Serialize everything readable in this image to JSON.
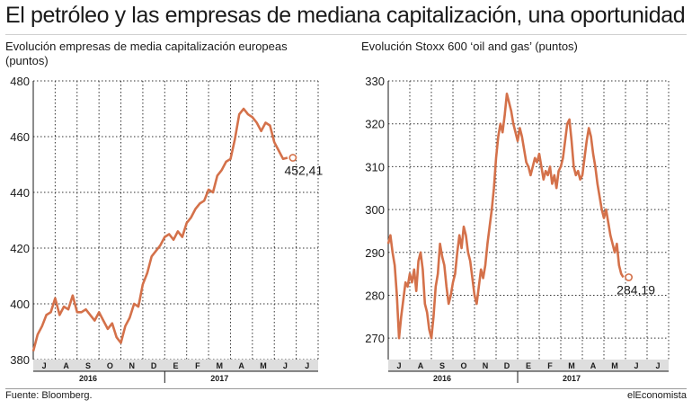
{
  "header": {
    "title": "El petróleo y las empresas de mediana capitalización, una oportunidad"
  },
  "footer": {
    "source": "Fuente: Bloomberg.",
    "brand": "elEconomista"
  },
  "colors": {
    "line": "#d4714a",
    "grid": "#333333",
    "axis_band": "#dedede"
  },
  "chart_data": [
    {
      "type": "line",
      "title": "Evolución empresas de media capitalización europeas (puntos)",
      "title_lines": [
        "Evolución empresas de media capitalización europeas",
        "(puntos)"
      ],
      "ylim": [
        380,
        480
      ],
      "yticks": [
        380,
        400,
        420,
        440,
        460,
        480
      ],
      "ytick_labels": [
        "380",
        "400",
        "420",
        "440",
        "460",
        "480"
      ],
      "months": [
        "J",
        "A",
        "S",
        "O",
        "N",
        "D",
        "E",
        "F",
        "M",
        "A",
        "M",
        "J",
        "J"
      ],
      "years": [
        {
          "label": "2016",
          "at": 2.5
        },
        {
          "label": "2017",
          "at": 8.5
        }
      ],
      "grid": true,
      "last_value_label": "452,41",
      "series": [
        {
          "points": [
            [
              0.0,
              383
            ],
            [
              0.2,
              389
            ],
            [
              0.4,
              392
            ],
            [
              0.6,
              396
            ],
            [
              0.8,
              397
            ],
            [
              1.0,
              402
            ],
            [
              1.2,
              396
            ],
            [
              1.4,
              399
            ],
            [
              1.6,
              398
            ],
            [
              1.8,
              403
            ],
            [
              2.0,
              397
            ],
            [
              2.2,
              397
            ],
            [
              2.4,
              398
            ],
            [
              2.6,
              396
            ],
            [
              2.8,
              394
            ],
            [
              3.0,
              397
            ],
            [
              3.2,
              394
            ],
            [
              3.4,
              391
            ],
            [
              3.6,
              393
            ],
            [
              3.8,
              388
            ],
            [
              4.0,
              386
            ],
            [
              4.2,
              392
            ],
            [
              4.4,
              395
            ],
            [
              4.6,
              400
            ],
            [
              4.8,
              399
            ],
            [
              5.0,
              407
            ],
            [
              5.2,
              411
            ],
            [
              5.4,
              417
            ],
            [
              5.6,
              419
            ],
            [
              5.8,
              421
            ],
            [
              6.0,
              424
            ],
            [
              6.2,
              425
            ],
            [
              6.4,
              423
            ],
            [
              6.6,
              426
            ],
            [
              6.8,
              424
            ],
            [
              7.0,
              429
            ],
            [
              7.2,
              431
            ],
            [
              7.4,
              434
            ],
            [
              7.6,
              436
            ],
            [
              7.8,
              437
            ],
            [
              8.0,
              441
            ],
            [
              8.2,
              440
            ],
            [
              8.4,
              446
            ],
            [
              8.6,
              448
            ],
            [
              8.8,
              451
            ],
            [
              9.0,
              452
            ],
            [
              9.2,
              459
            ],
            [
              9.4,
              468
            ],
            [
              9.6,
              470
            ],
            [
              9.8,
              468
            ],
            [
              10.0,
              467
            ],
            [
              10.2,
              465
            ],
            [
              10.4,
              462
            ],
            [
              10.6,
              465
            ],
            [
              10.8,
              464
            ],
            [
              11.0,
              458
            ],
            [
              11.2,
              455
            ],
            [
              11.4,
              452
            ],
            [
              11.6,
              452.41
            ]
          ]
        }
      ]
    },
    {
      "type": "line",
      "title": "Evolución Stoxx 600 ‘oil and gas’ (puntos)",
      "title_lines": [
        "Evolución Stoxx 600 ‘oil and gas’ (puntos)"
      ],
      "ylim": [
        265,
        330
      ],
      "yticks": [
        270,
        280,
        290,
        300,
        310,
        320,
        330
      ],
      "ytick_labels": [
        "270",
        "280",
        "290",
        "300",
        "310",
        "320",
        "330"
      ],
      "months": [
        "J",
        "A",
        "S",
        "O",
        "N",
        "D",
        "E",
        "F",
        "M",
        "A",
        "M",
        "J",
        "J"
      ],
      "years": [
        {
          "label": "2016",
          "at": 2.5
        },
        {
          "label": "2017",
          "at": 8.5
        }
      ],
      "grid": true,
      "last_value_label": "284,19",
      "series": [
        {
          "points": [
            [
              0.0,
              292
            ],
            [
              0.1,
              294
            ],
            [
              0.2,
              290
            ],
            [
              0.3,
              287
            ],
            [
              0.4,
              280
            ],
            [
              0.5,
              270
            ],
            [
              0.6,
              275
            ],
            [
              0.7,
              279
            ],
            [
              0.8,
              283
            ],
            [
              0.9,
              282
            ],
            [
              1.0,
              285
            ],
            [
              1.1,
              283
            ],
            [
              1.2,
              286
            ],
            [
              1.3,
              281
            ],
            [
              1.4,
              288
            ],
            [
              1.5,
              290
            ],
            [
              1.6,
              286
            ],
            [
              1.7,
              278
            ],
            [
              1.8,
              276
            ],
            [
              1.9,
              272
            ],
            [
              2.0,
              270
            ],
            [
              2.1,
              275
            ],
            [
              2.2,
              282
            ],
            [
              2.3,
              285
            ],
            [
              2.4,
              292
            ],
            [
              2.5,
              289
            ],
            [
              2.6,
              287
            ],
            [
              2.7,
              282
            ],
            [
              2.8,
              278
            ],
            [
              2.9,
              280
            ],
            [
              3.0,
              283
            ],
            [
              3.1,
              285
            ],
            [
              3.2,
              290
            ],
            [
              3.3,
              294
            ],
            [
              3.4,
              291
            ],
            [
              3.5,
              296
            ],
            [
              3.6,
              294
            ],
            [
              3.7,
              290
            ],
            [
              3.8,
              288
            ],
            [
              3.9,
              284
            ],
            [
              4.0,
              280
            ],
            [
              4.1,
              278
            ],
            [
              4.2,
              282
            ],
            [
              4.3,
              286
            ],
            [
              4.4,
              284
            ],
            [
              4.5,
              287
            ],
            [
              4.6,
              292
            ],
            [
              4.7,
              296
            ],
            [
              4.8,
              300
            ],
            [
              4.9,
              305
            ],
            [
              5.0,
              312
            ],
            [
              5.1,
              317
            ],
            [
              5.2,
              320
            ],
            [
              5.3,
              318
            ],
            [
              5.4,
              322
            ],
            [
              5.5,
              327
            ],
            [
              5.6,
              325
            ],
            [
              5.7,
              323
            ],
            [
              5.8,
              320
            ],
            [
              5.9,
              318
            ],
            [
              6.0,
              316
            ],
            [
              6.1,
              319
            ],
            [
              6.2,
              317
            ],
            [
              6.3,
              314
            ],
            [
              6.4,
              311
            ],
            [
              6.5,
              310
            ],
            [
              6.6,
              308
            ],
            [
              6.7,
              310
            ],
            [
              6.8,
              312
            ],
            [
              6.9,
              311
            ],
            [
              7.0,
              313
            ],
            [
              7.1,
              310
            ],
            [
              7.2,
              307
            ],
            [
              7.3,
              309
            ],
            [
              7.4,
              308
            ],
            [
              7.5,
              310
            ],
            [
              7.6,
              306
            ],
            [
              7.7,
              308
            ],
            [
              7.8,
              305
            ],
            [
              7.9,
              309
            ],
            [
              8.0,
              310
            ],
            [
              8.1,
              312
            ],
            [
              8.2,
              316
            ],
            [
              8.3,
              320
            ],
            [
              8.4,
              321
            ],
            [
              8.5,
              316
            ],
            [
              8.6,
              310
            ],
            [
              8.7,
              308
            ],
            [
              8.8,
              309
            ],
            [
              8.9,
              307
            ],
            [
              9.0,
              308
            ],
            [
              9.1,
              312
            ],
            [
              9.2,
              316
            ],
            [
              9.3,
              319
            ],
            [
              9.4,
              317
            ],
            [
              9.5,
              313
            ],
            [
              9.6,
              310
            ],
            [
              9.7,
              306
            ],
            [
              9.8,
              303
            ],
            [
              9.9,
              300
            ],
            [
              10.0,
              298
            ],
            [
              10.1,
              300
            ],
            [
              10.2,
              297
            ],
            [
              10.3,
              294
            ],
            [
              10.4,
              292
            ],
            [
              10.5,
              290
            ],
            [
              10.6,
              292
            ],
            [
              10.7,
              287
            ],
            [
              10.8,
              285
            ],
            [
              10.9,
              284.19
            ]
          ]
        }
      ]
    }
  ]
}
